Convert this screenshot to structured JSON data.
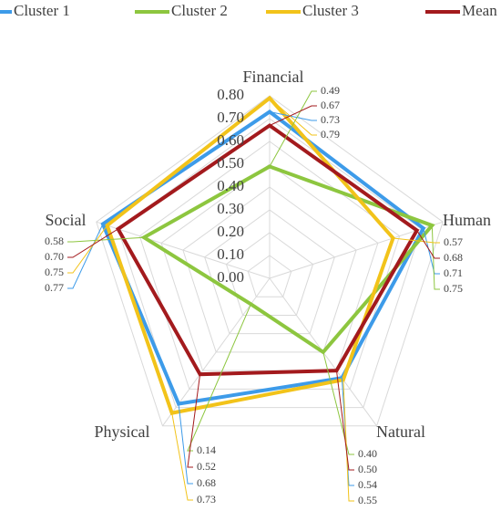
{
  "chart_data": {
    "type": "radar",
    "categories": [
      "Financial",
      "Human",
      "Natural",
      "Physical",
      "Social"
    ],
    "series": [
      {
        "name": "Cluster 1",
        "color": "#3d9be9",
        "values": [
          0.73,
          0.71,
          0.54,
          0.68,
          0.77
        ],
        "value_labels": [
          "0.73",
          "0.71",
          "0.54",
          "0.68",
          "0.77"
        ]
      },
      {
        "name": "Cluster 2",
        "color": "#8dc63f",
        "values": [
          0.49,
          0.75,
          0.4,
          0.14,
          0.58
        ],
        "value_labels": [
          "0.49",
          "0.75",
          "0.40",
          "0.14",
          "0.58"
        ]
      },
      {
        "name": "Cluster 3",
        "color": "#f2c31a",
        "values": [
          0.79,
          0.57,
          0.55,
          0.73,
          0.75
        ],
        "value_labels": [
          "0.79",
          "0.57",
          "0.55",
          "0.73",
          "0.75"
        ]
      },
      {
        "name": "Mean",
        "color": "#a31a1d",
        "values": [
          0.67,
          0.68,
          0.5,
          0.52,
          0.7
        ],
        "value_labels": [
          "0.67",
          "0.68",
          "0.50",
          "0.52",
          "0.70"
        ]
      }
    ],
    "ylim": [
      0,
      0.8
    ],
    "yticks": [
      {
        "value": 0,
        "label": "0.00"
      },
      {
        "value": 0.1,
        "label": "0.10"
      },
      {
        "value": 0.2,
        "label": "0.20"
      },
      {
        "value": 0.3,
        "label": "0.30"
      },
      {
        "value": 0.4,
        "label": "0.40"
      },
      {
        "value": 0.5,
        "label": "0.50"
      },
      {
        "value": 0.6,
        "label": "0.60"
      },
      {
        "value": 0.7,
        "label": "0.70"
      },
      {
        "value": 0.8,
        "label": "0.80"
      }
    ],
    "grid": true
  }
}
